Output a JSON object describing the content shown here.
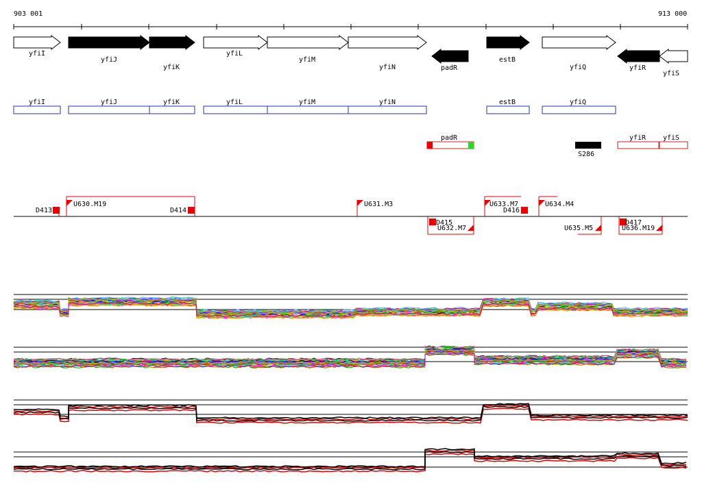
{
  "coordinates": {
    "start": "903 001",
    "end": "913 000"
  },
  "colors": {
    "gene_fill_dark": "#000000",
    "gene_fill_light": "#ffffff",
    "cds_box": "#2233bb",
    "rna_box": "#cc2222",
    "feature_red": "#ee0000",
    "feature_green": "#22dd22",
    "signal_black": "#000000",
    "signal_red": "#dd0000"
  },
  "genes": [
    {
      "name": "yfiI",
      "strand": "+",
      "style": "open"
    },
    {
      "name": "yfiJ",
      "strand": "+",
      "style": "filled"
    },
    {
      "name": "yfiK",
      "strand": "+",
      "style": "filled"
    },
    {
      "name": "yfiL",
      "strand": "+",
      "style": "open"
    },
    {
      "name": "yfiM",
      "strand": "+",
      "style": "open"
    },
    {
      "name": "yfiN",
      "strand": "+",
      "style": "open"
    },
    {
      "name": "padR",
      "strand": "-",
      "style": "filled"
    },
    {
      "name": "estB",
      "strand": "+",
      "style": "filled"
    },
    {
      "name": "yfiQ",
      "strand": "+",
      "style": "open"
    },
    {
      "name": "yfiR",
      "strand": "-",
      "style": "filled"
    },
    {
      "name": "yfiS",
      "strand": "-",
      "style": "open"
    }
  ],
  "cds_boxes": [
    "yfiI",
    "yfiJ",
    "yfiK",
    "yfiL",
    "yfiM",
    "yfiN",
    "estB",
    "yfiQ"
  ],
  "rna_features": [
    {
      "label": "padR"
    },
    {
      "label": "S286"
    },
    {
      "label": "yfiR"
    },
    {
      "label": "yfiS"
    }
  ],
  "upper_features": [
    {
      "label": "D413",
      "kind": "square"
    },
    {
      "label": "U630.M19",
      "kind": "flag"
    },
    {
      "label": "D414",
      "kind": "square"
    },
    {
      "label": "U631.M3",
      "kind": "flag"
    },
    {
      "label": "U633.M7",
      "kind": "flag"
    },
    {
      "label": "D416",
      "kind": "square"
    },
    {
      "label": "U634.M4",
      "kind": "flag"
    }
  ],
  "lower_features": [
    {
      "label": "D415",
      "kind": "square"
    },
    {
      "label": "U632.M7",
      "kind": "flag-down"
    },
    {
      "label": "U635.M5",
      "kind": "flag-down"
    },
    {
      "label": "D417",
      "kind": "square"
    },
    {
      "label": "U636.M19",
      "kind": "flag-down"
    }
  ],
  "panels": [
    {
      "id": "multi-plus",
      "type": "multicolor"
    },
    {
      "id": "multi-minus",
      "type": "multicolor"
    },
    {
      "id": "pair-plus",
      "type": "black-red"
    },
    {
      "id": "pair-minus",
      "type": "black-red"
    }
  ]
}
